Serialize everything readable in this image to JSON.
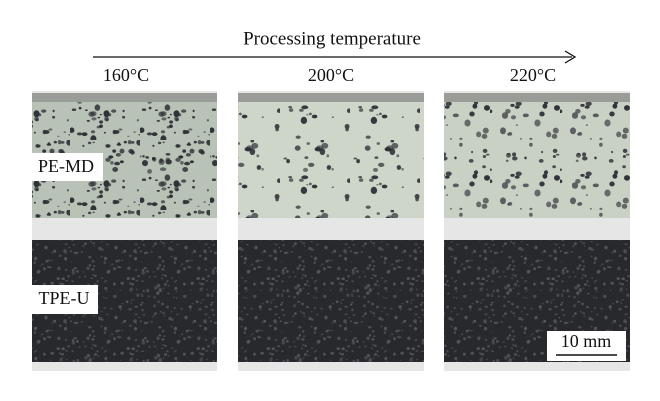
{
  "header": {
    "title": "Processing temperature"
  },
  "columns": [
    "160°C",
    "200°C",
    "220°C"
  ],
  "rows": [
    "PE-MD",
    "TPE-U"
  ],
  "scale_bar": "10 mm"
}
